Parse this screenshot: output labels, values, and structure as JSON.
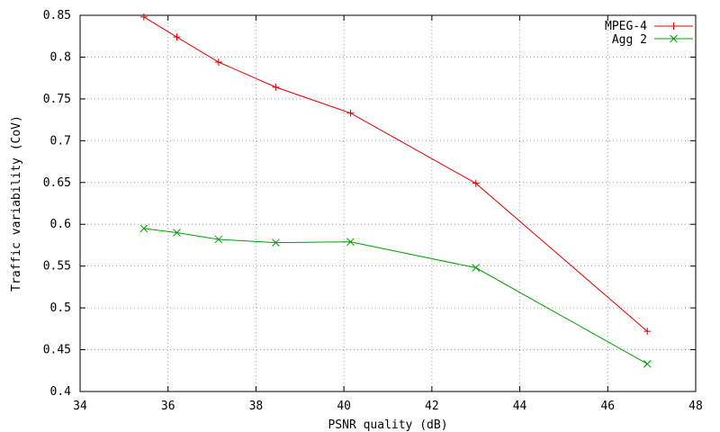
{
  "chart_data": {
    "type": "line",
    "xlabel": "PSNR quality (dB)",
    "ylabel": "Traffic variability (CoV)",
    "xlim": [
      34,
      48
    ],
    "ylim": [
      0.4,
      0.85
    ],
    "xticks": [
      34,
      36,
      38,
      40,
      42,
      44,
      46,
      48
    ],
    "xtick_labels": [
      "34",
      "36",
      "38",
      "40",
      "42",
      "44",
      "46",
      "48"
    ],
    "yticks": [
      0.4,
      0.45,
      0.5,
      0.55,
      0.6,
      0.65,
      0.7,
      0.75,
      0.8,
      0.85
    ],
    "ytick_labels": [
      "0.4",
      "0.45",
      "0.5",
      "0.55",
      "0.6",
      "0.65",
      "0.7",
      "0.75",
      "0.8",
      "0.85"
    ],
    "grid": true,
    "legend_position": "top-right",
    "series": [
      {
        "name": "MPEG-4",
        "color": "#e00000",
        "marker": "plus",
        "x": [
          35.45,
          36.2,
          37.15,
          38.45,
          40.15,
          43.0,
          46.9
        ],
        "y": [
          0.848,
          0.824,
          0.794,
          0.764,
          0.733,
          0.649,
          0.472
        ]
      },
      {
        "name": "Agg 2",
        "color": "#00a000",
        "marker": "x",
        "x": [
          35.45,
          36.2,
          37.15,
          38.45,
          40.15,
          43.0,
          46.9
        ],
        "y": [
          0.595,
          0.59,
          0.582,
          0.578,
          0.579,
          0.548,
          0.433
        ]
      }
    ]
  }
}
